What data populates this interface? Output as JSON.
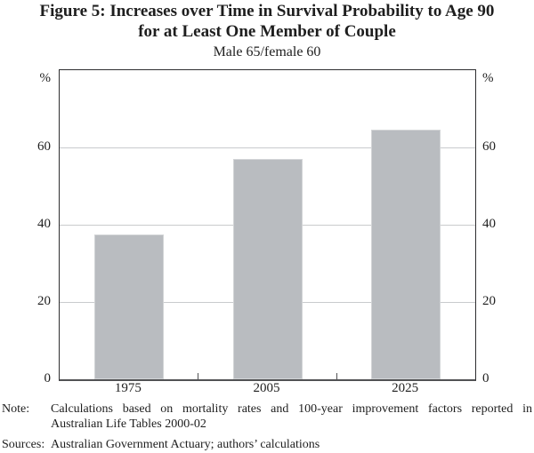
{
  "figure": {
    "title_line1": "Figure 5: Increases over Time in Survival Probability to Age 90",
    "title_line2": "for at Least One Member of Couple",
    "subtitle": "Male 65/female 60"
  },
  "chart_data": {
    "type": "bar",
    "title": "Figure 5: Increases over Time in Survival Probability to Age 90 for at Least One Member of Couple",
    "subtitle": "Male 65/female 60",
    "categories": [
      "1975",
      "2005",
      "2025"
    ],
    "values": [
      37.5,
      57,
      64.5
    ],
    "xlabel": "",
    "ylabel": "%",
    "unit_label": "%",
    "ylim": [
      0,
      80
    ],
    "yticks": [
      0,
      20,
      40,
      60
    ],
    "grid": "horizontal",
    "legend": "none",
    "bar_color": "#b9bcc0",
    "gridline_color": "#c9cbcd"
  },
  "notes": {
    "note_label": "Note:",
    "note_line1": "Calculations based on mortality rates and 100-year improvement factors reported in",
    "note_line2": "Australian Life Tables 2000-02",
    "sources_label": "Sources:",
    "sources_text": "Australian Government Actuary; authors’ calculations"
  }
}
